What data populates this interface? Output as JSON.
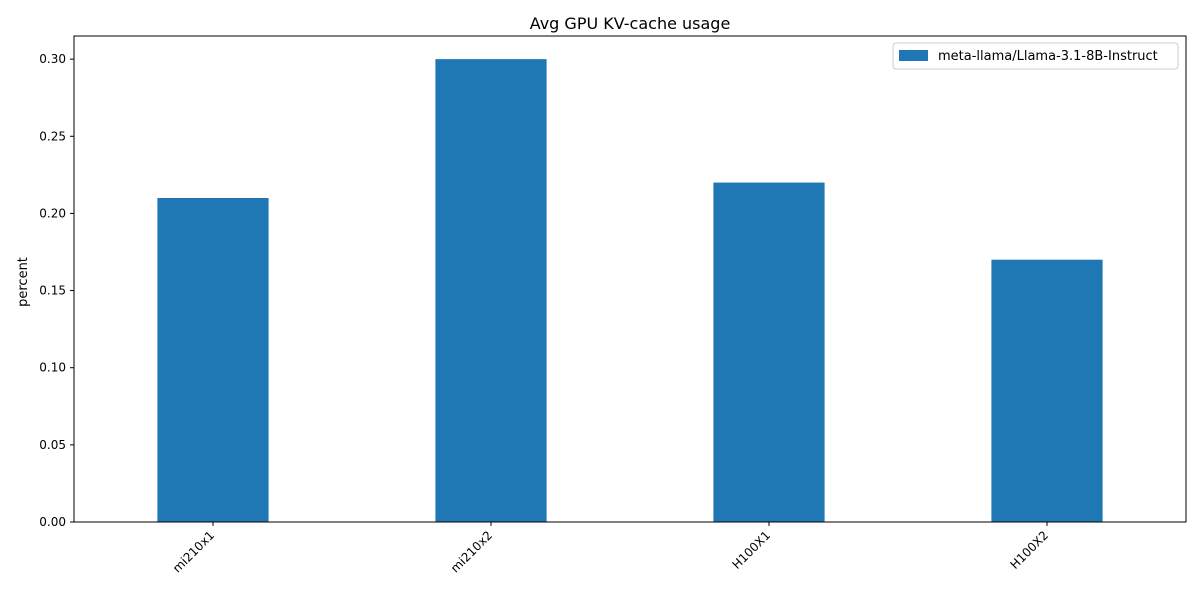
{
  "chart_data": {
    "type": "bar",
    "title": "Avg GPU KV-cache usage",
    "xlabel": "",
    "ylabel": "percent",
    "categories": [
      "mi210x1",
      "mi210x2",
      "H100X1",
      "H100X2"
    ],
    "series": [
      {
        "name": "meta-llama/Llama-3.1-8B-Instruct",
        "values": [
          0.21,
          0.3,
          0.22,
          0.17
        ],
        "color": "#1f77b4"
      }
    ],
    "ylim": [
      0,
      0.315
    ],
    "yticks": [
      "0.00",
      "0.05",
      "0.10",
      "0.15",
      "0.20",
      "0.25",
      "0.30"
    ],
    "grid": false,
    "legend": "top-right"
  }
}
